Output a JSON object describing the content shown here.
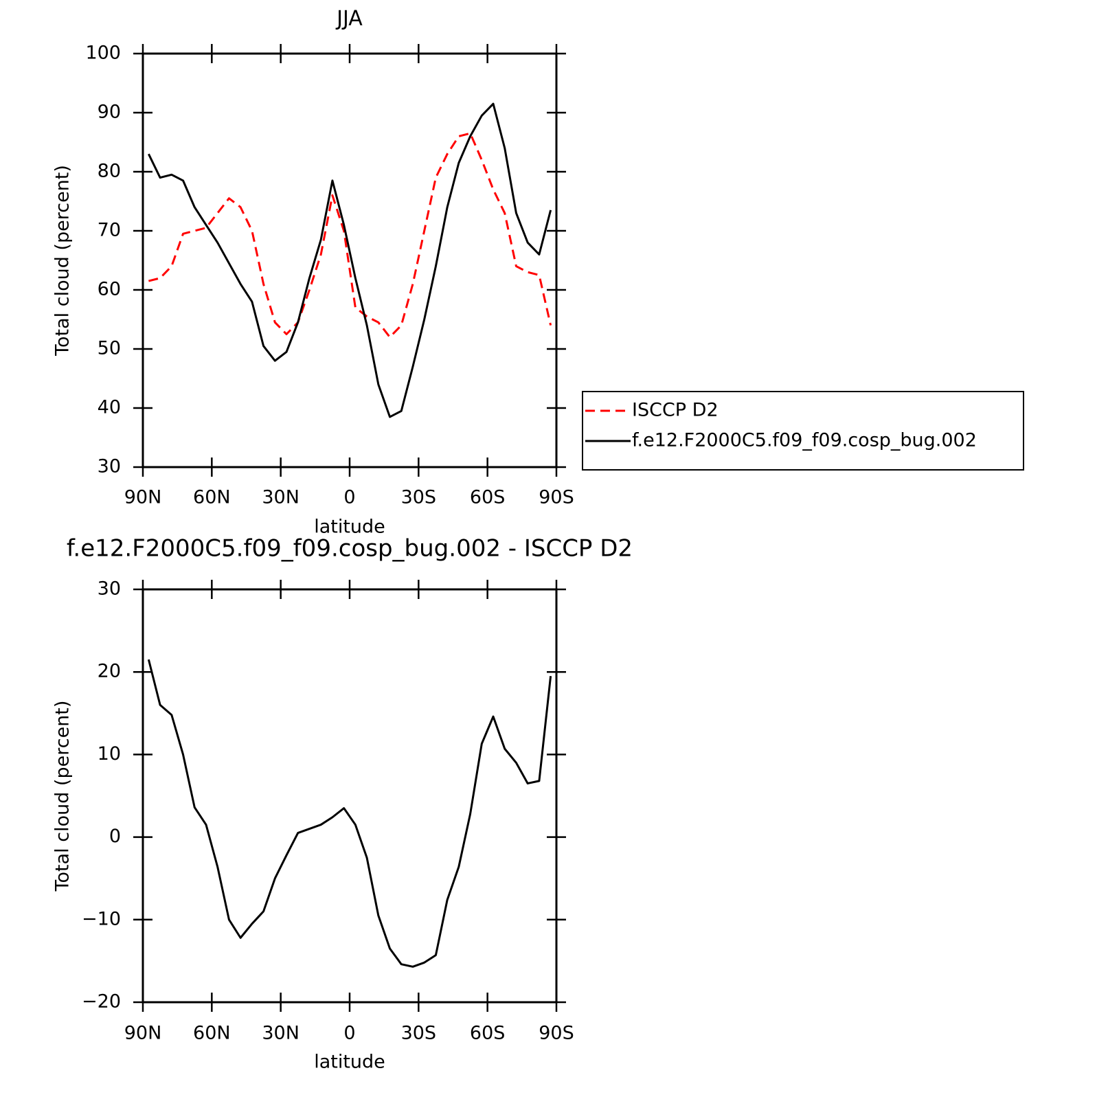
{
  "chart_data": [
    {
      "type": "line",
      "title": "JJA",
      "x_label": "latitude",
      "y_label": "Total cloud (percent)",
      "x": [
        87.5,
        82.5,
        77.5,
        72.5,
        67.5,
        62.5,
        57.5,
        52.5,
        47.5,
        42.5,
        37.5,
        32.5,
        27.5,
        22.5,
        17.5,
        12.5,
        7.5,
        2.5,
        -2.5,
        -7.5,
        -12.5,
        -17.5,
        -22.5,
        -27.5,
        -32.5,
        -37.5,
        -42.5,
        -47.5,
        -52.5,
        -57.5,
        -62.5,
        -67.5,
        -72.5,
        -77.5,
        -82.5,
        -87.5
      ],
      "xlim": [
        90,
        -90
      ],
      "xticks": [
        {
          "value": 90,
          "label": "90N"
        },
        {
          "value": 60,
          "label": "60N"
        },
        {
          "value": 30,
          "label": "30N"
        },
        0,
        {
          "value": -30,
          "label": "30S"
        },
        {
          "value": -60,
          "label": "60S"
        },
        {
          "value": -90,
          "label": "90S"
        }
      ],
      "ylim": [
        30,
        100
      ],
      "yticks": [
        30,
        40,
        50,
        60,
        70,
        80,
        90,
        100
      ],
      "legend": "right",
      "series": [
        {
          "name": "ISCCP D2",
          "color": "#ff0000",
          "style": "dashed",
          "values": [
            61.5,
            62,
            64,
            69.5,
            70,
            70.5,
            73,
            75.5,
            74,
            70,
            61,
            54.5,
            52.5,
            54.5,
            60,
            66,
            76,
            70,
            57,
            55.5,
            54.5,
            52,
            54,
            61,
            70,
            79,
            83,
            86,
            86.5,
            82,
            77,
            73,
            64,
            63,
            62.5,
            54
          ]
        },
        {
          "name": "f.e12.F2000C5.f09_f09.cosp_bug.002",
          "color": "#000000",
          "style": "solid",
          "values": [
            83,
            79,
            79.5,
            78.5,
            74,
            71,
            68,
            64.5,
            61,
            58,
            50.5,
            48,
            49.5,
            54.5,
            62,
            68.5,
            78.5,
            71,
            62,
            54,
            44,
            38.5,
            39.5,
            47,
            55,
            64,
            74,
            81.5,
            86,
            89.5,
            91.5,
            84,
            73,
            68,
            66,
            73.5
          ]
        }
      ]
    },
    {
      "type": "line",
      "title": "f.e12.F2000C5.f09_f09.cosp_bug.002 - ISCCP D2",
      "x_label": "latitude",
      "y_label": "Total cloud (percent)",
      "x": [
        87.5,
        82.5,
        77.5,
        72.5,
        67.5,
        62.5,
        57.5,
        52.5,
        47.5,
        42.5,
        37.5,
        32.5,
        27.5,
        22.5,
        17.5,
        12.5,
        7.5,
        2.5,
        -2.5,
        -7.5,
        -12.5,
        -17.5,
        -22.5,
        -27.5,
        -32.5,
        -37.5,
        -42.5,
        -47.5,
        -52.5,
        -57.5,
        -62.5,
        -67.5,
        -72.5,
        -77.5,
        -82.5,
        -87.5
      ],
      "xlim": [
        90,
        -90
      ],
      "xticks": [
        {
          "value": 90,
          "label": "90N"
        },
        {
          "value": 60,
          "label": "60N"
        },
        {
          "value": 30,
          "label": "30N"
        },
        0,
        {
          "value": -30,
          "label": "30S"
        },
        {
          "value": -60,
          "label": "60S"
        },
        {
          "value": -90,
          "label": "90S"
        }
      ],
      "ylim": [
        -20,
        30
      ],
      "yticks": [
        {
          "value": -20,
          "label": "−20"
        },
        {
          "value": -10,
          "label": "−10"
        },
        0,
        10,
        20,
        30
      ],
      "series": [
        {
          "color": "#000000",
          "style": "solid",
          "values": [
            21.5,
            16,
            14.8,
            10,
            3.6,
            1.5,
            -3.6,
            -10,
            -12.2,
            -10.5,
            -9,
            -5,
            -2.2,
            0.5,
            1,
            1.5,
            2.4,
            3.5,
            1.5,
            -2.5,
            -9.5,
            -13.5,
            -15.4,
            -15.7,
            -15.2,
            -14.3,
            -7.6,
            -3.6,
            2.8,
            11.3,
            14.6,
            10.7,
            9,
            6.5,
            6.8,
            19.5
          ]
        }
      ]
    }
  ]
}
